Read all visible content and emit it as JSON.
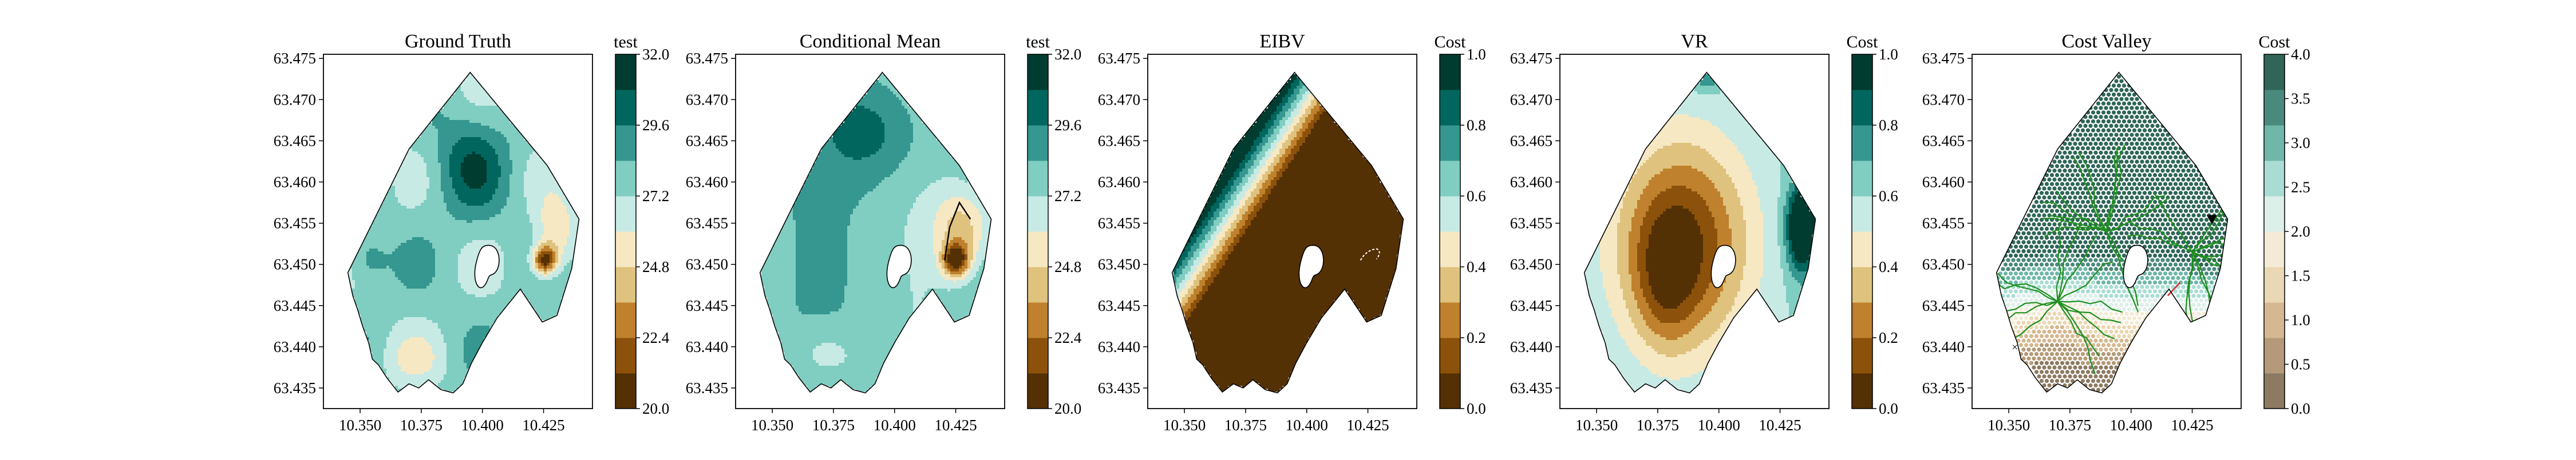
{
  "chart_data": [
    {
      "type": "contour",
      "title": "Ground Truth",
      "xlim": [
        10.335,
        10.445
      ],
      "ylim": [
        63.4325,
        63.4755
      ],
      "xticks": [
        "10.350",
        "10.375",
        "10.400",
        "10.425"
      ],
      "yticks": [
        "63.435",
        "63.440",
        "63.445",
        "63.450",
        "63.455",
        "63.460",
        "63.465",
        "63.470",
        "63.475"
      ],
      "colorbar": {
        "label": "test",
        "ticks": [
          "20.0",
          "22.4",
          "24.8",
          "27.2",
          "29.6",
          "32.0"
        ],
        "range": [
          20.0,
          32.0
        ]
      }
    },
    {
      "type": "contour",
      "title": "Conditional Mean",
      "xlim": [
        10.335,
        10.445
      ],
      "ylim": [
        63.4325,
        63.4755
      ],
      "xticks": [
        "10.350",
        "10.375",
        "10.400",
        "10.425"
      ],
      "yticks": [
        "63.435",
        "63.440",
        "63.445",
        "63.450",
        "63.455",
        "63.460",
        "63.465",
        "63.470",
        "63.475"
      ],
      "colorbar": {
        "label": "test",
        "ticks": [
          "20.0",
          "22.4",
          "24.8",
          "27.2",
          "29.6",
          "32.0"
        ],
        "range": [
          20.0,
          32.0
        ]
      }
    },
    {
      "type": "contour",
      "title": "EIBV",
      "xlim": [
        10.335,
        10.445
      ],
      "ylim": [
        63.4325,
        63.4755
      ],
      "xticks": [
        "10.350",
        "10.375",
        "10.400",
        "10.425"
      ],
      "yticks": [
        "63.435",
        "63.440",
        "63.445",
        "63.450",
        "63.455",
        "63.460",
        "63.465",
        "63.470",
        "63.475"
      ],
      "colorbar": {
        "label": "Cost",
        "ticks": [
          "0.0",
          "0.2",
          "0.4",
          "0.6",
          "0.8",
          "1.0"
        ],
        "range": [
          0.0,
          1.0
        ]
      }
    },
    {
      "type": "contour",
      "title": "VR",
      "xlim": [
        10.335,
        10.445
      ],
      "ylim": [
        63.4325,
        63.4755
      ],
      "xticks": [
        "10.350",
        "10.375",
        "10.400",
        "10.425"
      ],
      "yticks": [
        "63.435",
        "63.440",
        "63.445",
        "63.450",
        "63.455",
        "63.460",
        "63.465",
        "63.470",
        "63.475"
      ],
      "colorbar": {
        "label": "Cost",
        "ticks": [
          "0.0",
          "0.2",
          "0.4",
          "0.6",
          "0.8",
          "1.0"
        ],
        "range": [
          0.0,
          1.0
        ]
      }
    },
    {
      "type": "scatter",
      "title": "Cost Valley",
      "xlim": [
        10.335,
        10.445
      ],
      "ylim": [
        63.4325,
        63.4755
      ],
      "xticks": [
        "10.350",
        "10.375",
        "10.400",
        "10.425"
      ],
      "yticks": [
        "63.435",
        "63.440",
        "63.445",
        "63.450",
        "63.455",
        "63.460",
        "63.465",
        "63.470",
        "63.475"
      ],
      "colorbar": {
        "label": "Cost",
        "ticks": [
          "0.0",
          "0.5",
          "1.0",
          "1.5",
          "2.0",
          "2.5",
          "3.0",
          "3.5",
          "4.0"
        ],
        "range": [
          0.0,
          4.0
        ]
      }
    }
  ],
  "palettes": {
    "test": [
      "#543005",
      "#8c510a",
      "#bf812d",
      "#dfc27d",
      "#f6e8c3",
      "#c7eae5",
      "#80cdc1",
      "#35978f",
      "#01665e",
      "#003c30"
    ],
    "cost": [
      "#543005",
      "#8c510a",
      "#bf812d",
      "#dfc27d",
      "#f6e8c3",
      "#c7eae5",
      "#80cdc1",
      "#35978f",
      "#01665e",
      "#003c30"
    ],
    "valley": [
      "#8c7a62",
      "#b49a78",
      "#d5b891",
      "#ead7b3",
      "#f3ebd5",
      "#dcefe9",
      "#a9ddd3",
      "#6fb7a8",
      "#4a8a7c",
      "#2f6658"
    ]
  },
  "markers": {
    "path_color": "#1e8f1e",
    "current_color": "#000000",
    "start_color": "#2c3fd6",
    "end_color": "#d62c2c"
  }
}
